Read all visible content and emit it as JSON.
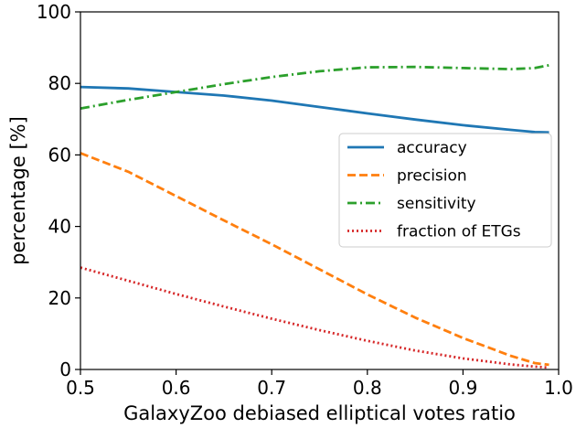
{
  "chart_data": {
    "type": "line",
    "title": "",
    "xlabel": "GalaxyZoo debiased elliptical votes ratio",
    "ylabel": "percentage [%]",
    "xlim": [
      0.5,
      1.0
    ],
    "ylim": [
      0,
      100
    ],
    "x_ticks": [
      "0.5",
      "0.6",
      "0.7",
      "0.8",
      "0.9",
      "1.0"
    ],
    "y_ticks": [
      "0",
      "20",
      "40",
      "60",
      "80",
      "100"
    ],
    "grid": false,
    "legend_position": "center-right",
    "x": [
      0.5,
      0.55,
      0.6,
      0.65,
      0.7,
      0.75,
      0.8,
      0.85,
      0.9,
      0.95,
      0.975,
      0.99
    ],
    "series": [
      {
        "name": "accuracy",
        "color": "#1f77b4",
        "style": "solid",
        "values": [
          79.0,
          78.6,
          77.6,
          76.6,
          75.2,
          73.4,
          71.6,
          69.9,
          68.3,
          67.0,
          66.4,
          66.3
        ]
      },
      {
        "name": "precision",
        "color": "#ff7f0e",
        "style": "dashed",
        "values": [
          60.5,
          55.3,
          48.5,
          41.7,
          35.0,
          28.0,
          21.0,
          14.5,
          8.8,
          3.8,
          1.8,
          1.3
        ]
      },
      {
        "name": "sensitivity",
        "color": "#2ca02c",
        "style": "dashdot",
        "values": [
          73.0,
          75.4,
          77.6,
          79.8,
          81.8,
          83.4,
          84.5,
          84.6,
          84.3,
          84.0,
          84.3,
          85.1
        ]
      },
      {
        "name": "fraction of ETGs",
        "color": "#d62728",
        "style": "dotted",
        "values": [
          28.5,
          24.8,
          21.1,
          17.6,
          14.2,
          11.0,
          8.0,
          5.3,
          3.1,
          1.4,
          0.8,
          0.5
        ]
      }
    ]
  }
}
